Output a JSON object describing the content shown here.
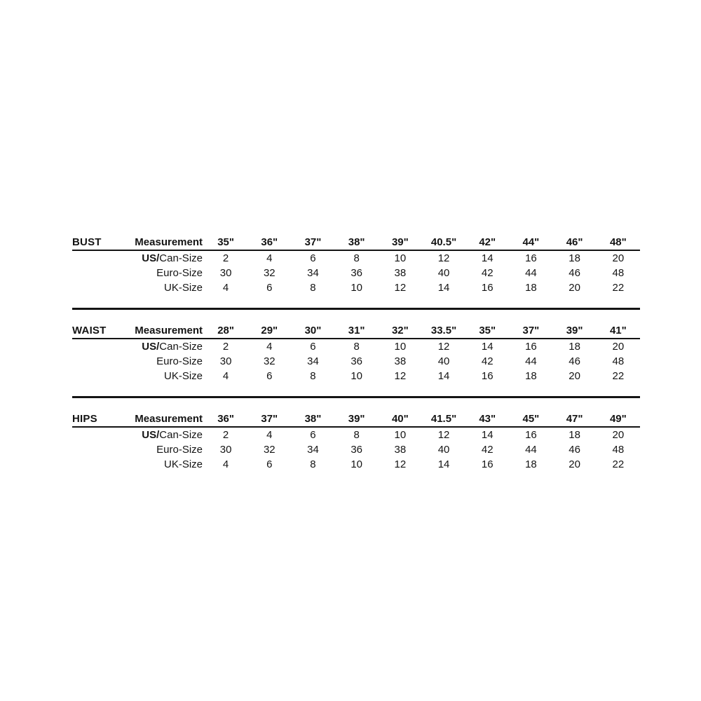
{
  "page": {
    "background_color": "#ffffff",
    "text_color": "#141414",
    "line_color": "#141414"
  },
  "size_chart": {
    "row_labels": {
      "measurement": "Measurement",
      "us_prefix": "US/",
      "us_suffix": "Can-Size",
      "euro": "Euro-Size",
      "uk": "UK-Size"
    },
    "sections": [
      {
        "label": "BUST",
        "measurements": [
          "35\"",
          "36\"",
          "37\"",
          "38\"",
          "39\"",
          "40.5\"",
          "42\"",
          "44\"",
          "46\"",
          "48\""
        ],
        "us_can": [
          "2",
          "4",
          "6",
          "8",
          "10",
          "12",
          "14",
          "16",
          "18",
          "20"
        ],
        "euro": [
          "30",
          "32",
          "34",
          "36",
          "38",
          "40",
          "42",
          "44",
          "46",
          "48"
        ],
        "uk": [
          "4",
          "6",
          "8",
          "10",
          "12",
          "14",
          "16",
          "18",
          "20",
          "22"
        ]
      },
      {
        "label": "WAIST",
        "measurements": [
          "28\"",
          "29\"",
          "30\"",
          "31\"",
          "32\"",
          "33.5\"",
          "35\"",
          "37\"",
          "39\"",
          "41\""
        ],
        "us_can": [
          "2",
          "4",
          "6",
          "8",
          "10",
          "12",
          "14",
          "16",
          "18",
          "20"
        ],
        "euro": [
          "30",
          "32",
          "34",
          "36",
          "38",
          "40",
          "42",
          "44",
          "46",
          "48"
        ],
        "uk": [
          "4",
          "6",
          "8",
          "10",
          "12",
          "14",
          "16",
          "18",
          "20",
          "22"
        ]
      },
      {
        "label": "HIPS",
        "measurements": [
          "36\"",
          "37\"",
          "38\"",
          "39\"",
          "40\"",
          "41.5\"",
          "43\"",
          "45\"",
          "47\"",
          "49\""
        ],
        "us_can": [
          "2",
          "4",
          "6",
          "8",
          "10",
          "12",
          "14",
          "16",
          "18",
          "20"
        ],
        "euro": [
          "30",
          "32",
          "34",
          "36",
          "38",
          "40",
          "42",
          "44",
          "46",
          "48"
        ],
        "uk": [
          "4",
          "6",
          "8",
          "10",
          "12",
          "14",
          "16",
          "18",
          "20",
          "22"
        ]
      }
    ]
  }
}
